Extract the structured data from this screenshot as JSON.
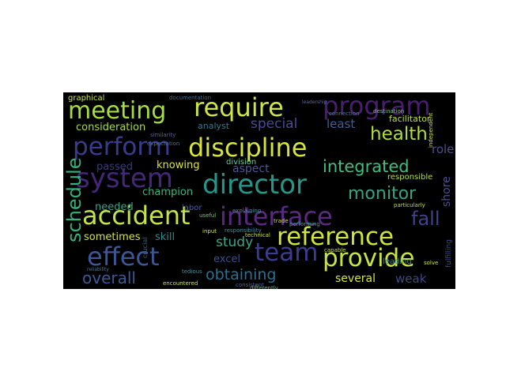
{
  "palette": {
    "background": "#000000",
    "figure": "#ffffff"
  },
  "words": {
    "meeting": "meeting",
    "require": "require",
    "program": "program",
    "perform": "perform",
    "discipline": "discipline",
    "system": "system",
    "director": "director",
    "accident": "accident",
    "interface": "interface",
    "reference": "reference",
    "effect": "effect",
    "team": "team",
    "provide": "provide",
    "health": "health",
    "integrated": "integrated",
    "monitor": "monitor",
    "fall": "fall",
    "schedule": "schedule",
    "overall": "overall",
    "obtaining": "obtaining",
    "study": "study",
    "special": "special",
    "consideration": "consideration",
    "graphical": "graphical",
    "least": "least",
    "role": "role",
    "facilitator": "facilitator",
    "analyst": "analyst",
    "aspect": "aspect",
    "knowing": "knowing",
    "passed": "passed",
    "champion": "champion",
    "needed": "needed",
    "sometimes": "sometimes",
    "skill": "skill",
    "excel": "excel",
    "several": "several",
    "weak": "weak",
    "shore": "shore",
    "responsible": "responsible",
    "division": "division",
    "labor": "labor",
    "leading": "leading",
    "documentation": "documentation",
    "similarity": "similarity",
    "responsibility": "responsibility",
    "technical": "technical",
    "encountered": "encountered",
    "input": "input",
    "connection": "connection",
    "performing": "performing",
    "capable": "capable",
    "trade": "trade",
    "consistent": "consistent",
    "fulfilling": "fulfilling",
    "solve": "solve",
    "particularly": "particularly",
    "tedious": "tedious",
    "explaining": "explaining",
    "crucial": "crucial",
    "useful": "useful",
    "differently": "differently",
    "expectation": "expectation",
    "destination": "destination",
    "independent": "independent",
    "reliability": "reliability",
    "leadership": "leadership"
  }
}
